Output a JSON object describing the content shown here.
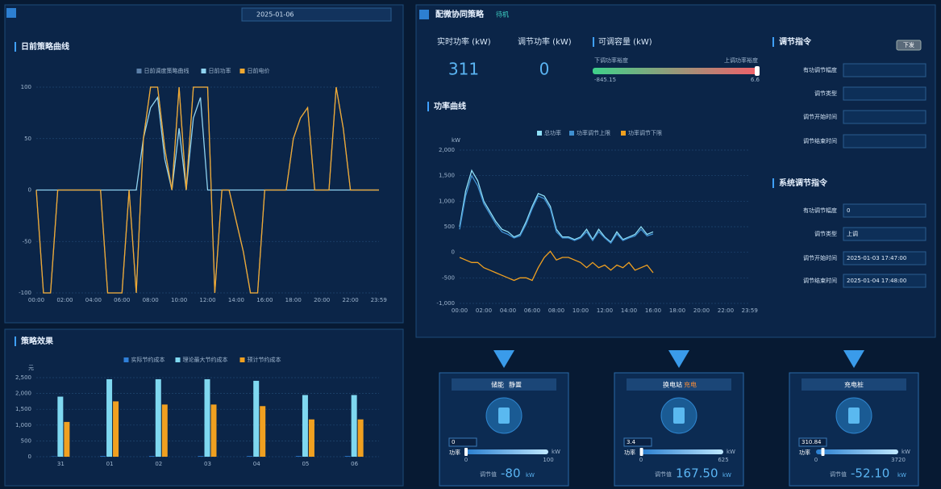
{
  "header": {
    "date": "2025-01-06",
    "right_title": "配微协同策略",
    "status": "待机"
  },
  "chart_data": [
    {
      "type": "line",
      "title": "日前策略曲线",
      "x": [
        0,
        0.5,
        1,
        1.5,
        2,
        2.5,
        3,
        3.5,
        4,
        4.5,
        5,
        5.5,
        6,
        6.5,
        7,
        7.5,
        8,
        8.5,
        9,
        9.5,
        10,
        10.5,
        11,
        11.5,
        12,
        12.5,
        13,
        13.5,
        14,
        14.5,
        15,
        15.5,
        16,
        16.5,
        17,
        17.5,
        18,
        18.5,
        19,
        19.5,
        20,
        20.5,
        21,
        21.5,
        22,
        22.5,
        23,
        23.5,
        24
      ],
      "xlim": [
        0,
        24
      ],
      "xticks": [
        {
          "value": 0,
          "label": "00:00"
        },
        {
          "value": 2,
          "label": "02:00"
        },
        {
          "value": 4,
          "label": "04:00"
        },
        {
          "value": 6,
          "label": "06:00"
        },
        {
          "value": 8,
          "label": "08:00"
        },
        {
          "value": 10,
          "label": "10:00"
        },
        {
          "value": 12,
          "label": "12:00"
        },
        {
          "value": 14,
          "label": "14:00"
        },
        {
          "value": 16,
          "label": "16:00"
        },
        {
          "value": 18,
          "label": "18:00"
        },
        {
          "value": 20,
          "label": "20:00"
        },
        {
          "value": 22,
          "label": "22:00"
        },
        {
          "value": 23.983,
          "label": "23:59"
        }
      ],
      "ylim": [
        -100,
        100
      ],
      "yticks": [
        100,
        50,
        0,
        -50,
        -100
      ],
      "series": [
        {
          "name": "日前调度策略曲线",
          "color": "#5b7fa8",
          "values": [
            0,
            -100,
            -100,
            0,
            0,
            0,
            0,
            0,
            0,
            0,
            -100,
            -100,
            -100,
            0,
            -100,
            50,
            100,
            100,
            40,
            0,
            100,
            0,
            100,
            100,
            100,
            -100,
            0,
            0,
            -30,
            -60,
            -100,
            -100,
            0,
            0,
            0,
            0,
            50,
            70,
            80,
            0,
            0,
            0,
            100,
            60,
            0,
            0,
            0,
            0,
            0
          ]
        },
        {
          "name": "日前功率",
          "color": "#8fd3f0",
          "values": [
            0,
            0,
            0,
            0,
            0,
            0,
            0,
            0,
            0,
            0,
            0,
            0,
            0,
            0,
            0,
            50,
            80,
            90,
            30,
            0,
            60,
            0,
            70,
            90,
            0,
            0,
            0,
            0,
            0,
            0,
            0,
            0,
            0,
            0,
            0,
            0,
            0,
            0,
            0,
            0,
            0,
            0,
            0,
            0,
            0,
            0,
            0,
            0,
            0
          ]
        },
        {
          "name": "日前电价",
          "color": "#f0a830",
          "values": [
            0,
            -100,
            -100,
            0,
            0,
            0,
            0,
            0,
            0,
            0,
            -100,
            -100,
            -100,
            0,
            -100,
            50,
            100,
            100,
            40,
            0,
            100,
            0,
            100,
            100,
            100,
            -100,
            0,
            0,
            -30,
            -60,
            -100,
            -100,
            0,
            0,
            0,
            0,
            50,
            70,
            80,
            0,
            0,
            0,
            100,
            60,
            0,
            0,
            0,
            0,
            0
          ]
        }
      ]
    },
    {
      "type": "bar",
      "title": "策略效果",
      "ylabel": "元",
      "categories": [
        "31",
        "01",
        "02",
        "03",
        "04",
        "05",
        "06"
      ],
      "ylim": [
        0,
        2500
      ],
      "yticks": [
        0,
        500,
        {
          "value": 1000,
          "label": "1,000"
        },
        {
          "value": 1500,
          "label": "1,500"
        },
        {
          "value": 2000,
          "label": "2,000"
        },
        {
          "value": 2500,
          "label": "2,500"
        }
      ],
      "series": [
        {
          "name": "实际节约成本",
          "color": "#2f7fd8",
          "values": [
            10,
            20,
            20,
            20,
            20,
            20,
            20
          ]
        },
        {
          "name": "理论最大节约成本",
          "color": "#7fd8f0",
          "values": [
            1900,
            2450,
            2450,
            2450,
            2400,
            1950,
            1950
          ]
        },
        {
          "name": "预计节约成本",
          "color": "#f0a020",
          "values": [
            1100,
            1750,
            1650,
            1650,
            1600,
            1180,
            1180
          ]
        }
      ]
    },
    {
      "type": "line",
      "title": "功率曲线",
      "ylabel": "kW",
      "x": [
        0,
        0.5,
        1,
        1.5,
        2,
        2.5,
        3,
        3.5,
        4,
        4.5,
        5,
        5.5,
        6,
        6.5,
        7,
        7.5,
        8,
        8.5,
        9,
        9.5,
        10,
        10.5,
        11,
        11.5,
        12,
        12.5,
        13,
        13.5,
        14,
        14.5,
        15,
        15.5,
        16
      ],
      "xlim": [
        0,
        24
      ],
      "xticks": [
        {
          "value": 0,
          "label": "00:00"
        },
        {
          "value": 2,
          "label": "02:00"
        },
        {
          "value": 4,
          "label": "04:00"
        },
        {
          "value": 6,
          "label": "06:00"
        },
        {
          "value": 8,
          "label": "08:00"
        },
        {
          "value": 10,
          "label": "10:00"
        },
        {
          "value": 12,
          "label": "12:00"
        },
        {
          "value": 14,
          "label": "14:00"
        },
        {
          "value": 16,
          "label": "16:00"
        },
        {
          "value": 18,
          "label": "18:00"
        },
        {
          "value": 20,
          "label": "20:00"
        },
        {
          "value": 22,
          "label": "22:00"
        },
        {
          "value": 23.983,
          "label": "23:59"
        }
      ],
      "ylim": [
        -1000,
        2000
      ],
      "yticks": [
        {
          "value": 2000,
          "label": "2,000"
        },
        {
          "value": 1500,
          "label": "1,500"
        },
        {
          "value": 1000,
          "label": "1,000"
        },
        500,
        0,
        -500,
        {
          "value": -1000,
          "label": "-1,000"
        }
      ],
      "series": [
        {
          "name": "总功率",
          "color": "#8fe0f8",
          "values": [
            500,
            1200,
            1600,
            1400,
            1000,
            800,
            600,
            450,
            400,
            300,
            350,
            600,
            900,
            1150,
            1100,
            900,
            450,
            300,
            300,
            250,
            300,
            450,
            250,
            450,
            300,
            200,
            400,
            250,
            300,
            350,
            500,
            350,
            400
          ]
        },
        {
          "name": "功率调节上限",
          "color": "#3f8fd0",
          "values": [
            450,
            1100,
            1500,
            1300,
            950,
            750,
            550,
            400,
            350,
            280,
            320,
            550,
            850,
            1100,
            1050,
            850,
            400,
            280,
            280,
            230,
            280,
            400,
            230,
            400,
            280,
            180,
            360,
            230,
            280,
            320,
            450,
            320,
            360
          ]
        },
        {
          "name": "功率调节下限",
          "color": "#f0a020",
          "values": [
            -100,
            -150,
            -200,
            -200,
            -300,
            -350,
            -400,
            -450,
            -500,
            -550,
            -500,
            -500,
            -550,
            -300,
            -100,
            20,
            -150,
            -100,
            -100,
            -150,
            -200,
            -300,
            -200,
            -300,
            -250,
            -350,
            -250,
            -300,
            -200,
            -350,
            -300,
            -250,
            -400
          ]
        }
      ]
    }
  ],
  "metrics": [
    {
      "label": "实时功率 (kW)",
      "value": 311
    },
    {
      "label": "调节功率 (kW)",
      "value": 0
    }
  ],
  "capacity": {
    "label": "可调容量 (kW)",
    "down_label": "下调功率裕度",
    "up_label": "上调功率裕度",
    "down_value": -845.15,
    "up_value": 6.6
  },
  "command_form": {
    "title": "调节指令",
    "button": "下发",
    "fields": [
      {
        "label": "有功调节幅度"
      },
      {
        "label": "调节类型"
      },
      {
        "label": "调节开始时间"
      },
      {
        "label": "调节结束时间"
      }
    ]
  },
  "system_command": {
    "title": "系统调节指令",
    "fields": [
      {
        "label": "有功调节幅度",
        "value": "0"
      },
      {
        "label": "调节类型",
        "value": "上调"
      },
      {
        "label": "调节开始时间",
        "value": "2025-01-03 17:47:00"
      },
      {
        "label": "调节结束时间",
        "value": "2025-01-04 17:48:00"
      }
    ]
  },
  "devices": [
    {
      "name": "储能",
      "status": "静置",
      "value": 0,
      "power_label": "功率",
      "min": 0,
      "max": 100,
      "unit": "kW",
      "adjust_label": "调节值",
      "adjust": -80
    },
    {
      "name": "换电站",
      "status": "充电",
      "value": 3.4,
      "power_label": "功率",
      "min": 0,
      "max": 625,
      "unit": "kW",
      "adjust_label": "调节值",
      "adjust": {
        "value": 167.5,
        "label": "167.50"
      }
    },
    {
      "name": "充电桩",
      "value": 310.84,
      "power_label": "功率",
      "min": 0,
      "max": 3720,
      "unit": "kW",
      "adjust_label": "调节值",
      "adjust": {
        "value": -52.1,
        "label": "-52.10"
      }
    }
  ]
}
